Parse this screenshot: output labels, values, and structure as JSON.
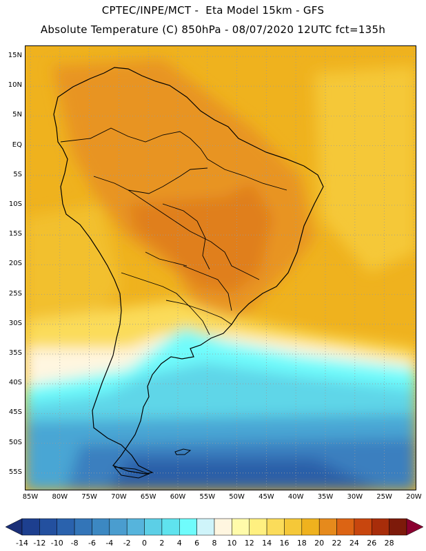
{
  "title_line1": "CPTEC/INPE/MCT -  Eta Model 15km - GFS",
  "title_line2": "Absolute Temperature (C) 850hPa - 08/07/2020 12UTC fct=135h",
  "map": {
    "lat_labels": [
      "15N",
      "10N",
      "5N",
      "EQ",
      "5S",
      "10S",
      "15S",
      "20S",
      "25S",
      "30S",
      "35S",
      "40S",
      "45S",
      "50S",
      "55S"
    ],
    "lon_labels": [
      "85W",
      "80W",
      "75W",
      "70W",
      "65W",
      "60W",
      "55W",
      "50W",
      "45W",
      "40W",
      "35W",
      "30W",
      "25W",
      "20W"
    ]
  },
  "legend": {
    "labels": [
      "-14",
      "-12",
      "-10",
      "-8",
      "-6",
      "-4",
      "-2",
      "0",
      "2",
      "4",
      "6",
      "8",
      "10",
      "12",
      "14",
      "16",
      "18",
      "20",
      "22",
      "24",
      "26",
      "28"
    ],
    "colors": [
      "#1d3f8f",
      "#23509f",
      "#2a62ad",
      "#3375b8",
      "#3c88c2",
      "#4a9dcf",
      "#56b4dc",
      "#5ccfe6",
      "#5fe3ee",
      "#6ffcfc",
      "#cff4fa",
      "#fff6e0",
      "#fffbaa",
      "#fff080",
      "#fbdc5a",
      "#f5c838",
      "#efb21e",
      "#e68a1c",
      "#dc6414",
      "#c8460e",
      "#a82d0a",
      "#7d1a0a"
    ],
    "low_arrow_color": "#1a2f78",
    "high_arrow_color": "#8a0030"
  }
}
